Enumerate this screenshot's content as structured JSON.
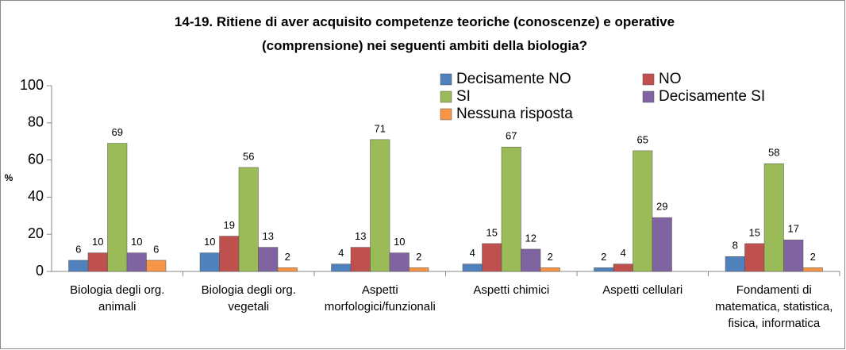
{
  "chart_data": {
    "type": "bar",
    "title": "14-19. Ritiene di aver acquisito competenze teoriche (conoscenze) e operative\n(comprensione) nei seguenti ambiti della biologia?",
    "ylabel": "%",
    "categories": [
      "Biologia degli org.\nanimali",
      "Biologia degli org.\nvegetali",
      "Aspetti\nmorfologici/funzionali",
      "Aspetti chimici",
      "Aspetti cellulari",
      "Fondamenti di\nmatematica, statistica,\nfisica, informatica"
    ],
    "series": [
      {
        "name": "Decisamente NO",
        "color": "#4f81bd",
        "values": [
          6,
          10,
          4,
          4,
          2,
          8
        ]
      },
      {
        "name": "NO",
        "color": "#c0504d",
        "values": [
          10,
          19,
          13,
          15,
          4,
          15
        ]
      },
      {
        "name": "SI",
        "color": "#9bbb59",
        "values": [
          69,
          56,
          71,
          67,
          65,
          58
        ]
      },
      {
        "name": "Decisamente SI",
        "color": "#8064a2",
        "values": [
          10,
          13,
          10,
          12,
          29,
          17
        ]
      },
      {
        "name": "Nessuna risposta",
        "color": "#f79646",
        "values": [
          6,
          2,
          2,
          2,
          null,
          2
        ]
      }
    ],
    "ylim": [
      0,
      100
    ],
    "yticks": [
      0,
      20,
      40,
      60,
      80,
      100
    ],
    "legend": "top-right"
  }
}
